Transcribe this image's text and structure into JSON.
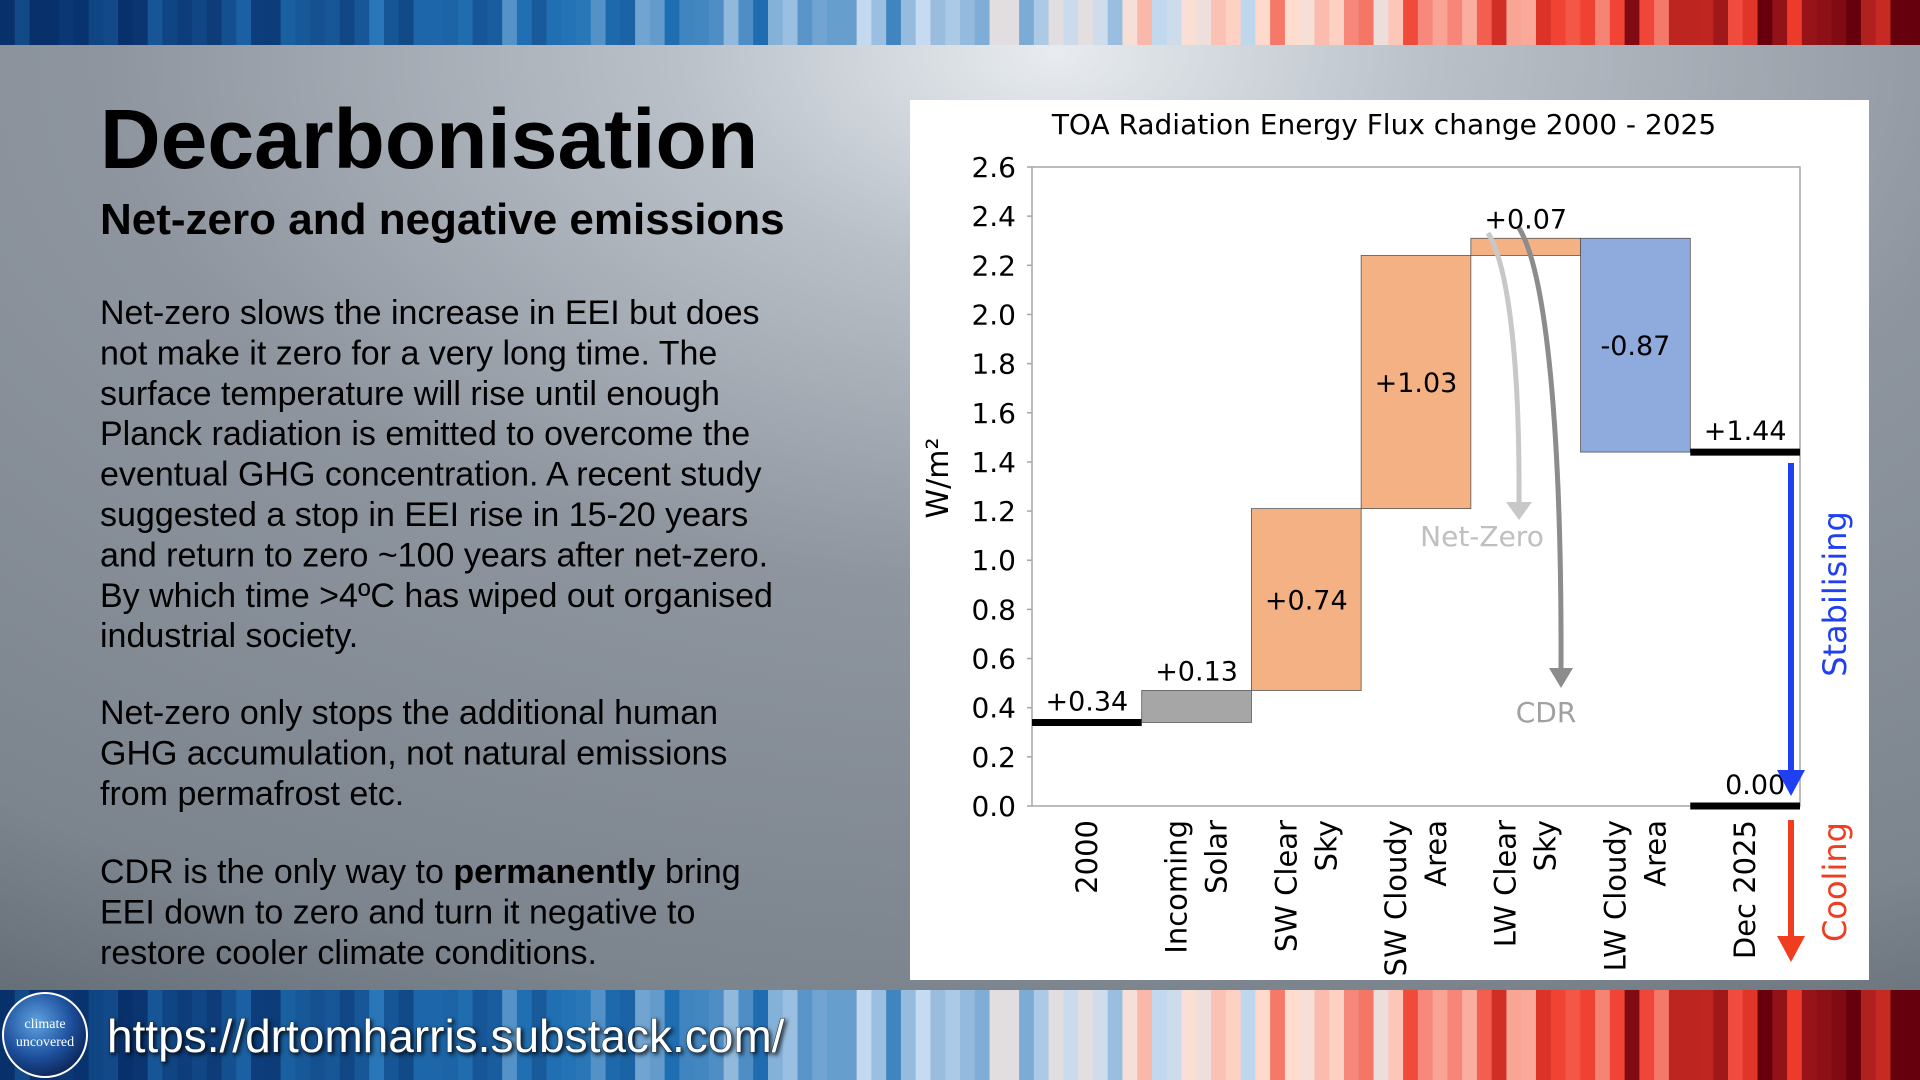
{
  "header": {
    "title": "Decarbonisation",
    "subtitle": "Net-zero and negative emissions"
  },
  "body": {
    "paragraphs": [
      [
        "Net-zero slows the increase in EEI but does",
        "not make it zero for a very long time. The",
        "surface temperature will rise until enough",
        "Planck radiation is emitted to overcome the",
        "eventual GHG concentration. A recent study",
        "suggested a stop in EEI rise in 15-20 years",
        "and return to zero ~100 years after net-zero.",
        "By which time >4ºC has wiped out organised",
        "industrial society."
      ],
      [
        "Net-zero only stops the additional human",
        "GHG accumulation, not natural emissions",
        "from permafrost etc."
      ],
      [
        [
          {
            "text": "CDR is the only way to "
          },
          {
            "text": "permanently",
            "bold": true
          },
          {
            "text": " bring"
          }
        ],
        "EEI down to zero and turn it negative to",
        "restore cooler climate conditions."
      ]
    ]
  },
  "footer": {
    "url": "https://drtomharris.substack.com/",
    "logo": [
      "climate",
      "uncovered"
    ]
  },
  "chart_data": {
    "type": "waterfall",
    "title": "TOA Radiation Energy Flux change 2000 - 2025",
    "y_label": "W/m²",
    "categories": [
      [
        "2000"
      ],
      [
        "Incoming",
        "Solar"
      ],
      [
        "SW Clear",
        "Sky"
      ],
      [
        "SW Cloudy",
        "Area"
      ],
      [
        "LW Clear",
        "Sky"
      ],
      [
        "LW Cloudy",
        "Area"
      ],
      [
        "Dec 2025"
      ]
    ],
    "measure": [
      "total",
      "relative",
      "relative",
      "relative",
      "relative",
      "relative",
      "total"
    ],
    "values": [
      0.34,
      0.13,
      0.74,
      1.03,
      0.07,
      -0.87,
      1.44
    ],
    "value_labels": [
      "+0.34",
      "+0.13",
      "+0.74",
      "+1.03",
      "+0.07",
      "-0.87",
      "+1.44"
    ],
    "colors": [
      "#000000",
      "#a6a6a6",
      "#f4b183",
      "#f4b183",
      "#f4b183",
      "#8faadc",
      "#000000"
    ],
    "target": {
      "value": 0,
      "label": "0.00"
    },
    "annotations": {
      "net_zero": "Net-Zero",
      "cdr": "CDR",
      "stabilising": "Stabilising",
      "cooling": "Cooling"
    },
    "ylim": [
      0,
      2.6
    ],
    "yticks": [
      {
        "value": 0,
        "label": "0.0"
      },
      0.2,
      0.4,
      0.6,
      0.8,
      {
        "value": 1,
        "label": "1.0"
      },
      1.2,
      1.4,
      1.6,
      1.8,
      {
        "value": 2,
        "label": "2.0"
      },
      2.2,
      2.4,
      2.6
    ],
    "grid": false
  }
}
